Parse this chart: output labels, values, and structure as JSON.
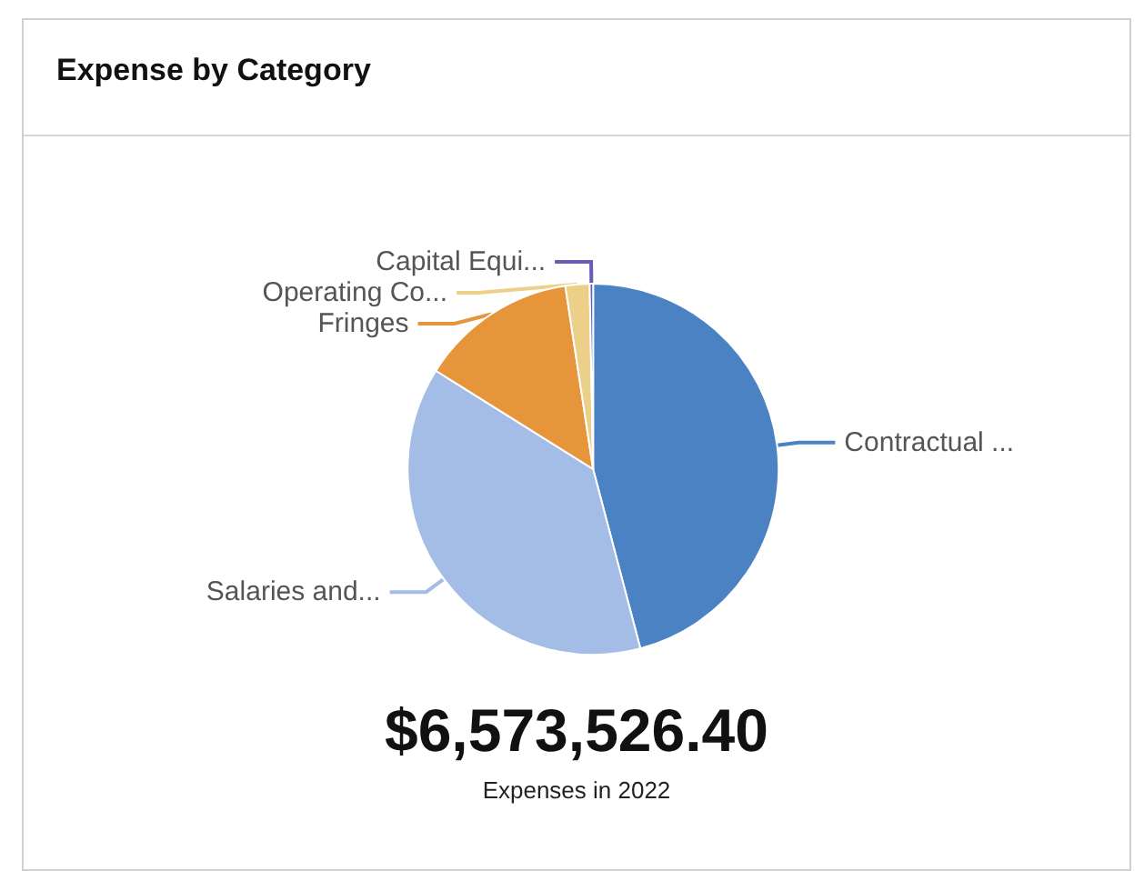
{
  "chart_data": {
    "type": "pie",
    "title": "Expense by Category",
    "categories": [
      "Contractual ...",
      "Salaries and...",
      "Fringes",
      "Operating Co...",
      "Capital Equi..."
    ],
    "values": [
      45.9,
      38,
      13.7,
      2.1,
      0.3
    ],
    "colors": [
      "#4a82c3",
      "#a4bde6",
      "#e6953a",
      "#ecd08a",
      "#6a5cb5"
    ],
    "legend": false,
    "annotations": [
      "$6,573,526.40",
      "Expenses in 2022"
    ]
  }
}
